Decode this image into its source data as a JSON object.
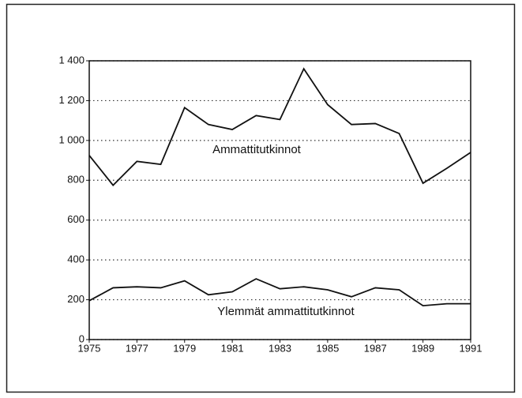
{
  "chart_data": {
    "type": "line",
    "x": [
      1975,
      1976,
      1977,
      1978,
      1979,
      1980,
      1981,
      1982,
      1983,
      1984,
      1985,
      1986,
      1987,
      1988,
      1989,
      1990,
      1991
    ],
    "series": [
      {
        "name": "Ammattitutkinnot",
        "color": "#111111",
        "values": [
          925,
          775,
          895,
          880,
          1165,
          1080,
          1055,
          1125,
          1105,
          1360,
          1180,
          1080,
          1085,
          1035,
          785,
          860,
          940
        ]
      },
      {
        "name": "Ylemmät ammattitutkinnot",
        "color": "#111111",
        "values": [
          195,
          260,
          265,
          260,
          295,
          225,
          240,
          305,
          255,
          265,
          250,
          215,
          260,
          250,
          170,
          180,
          180
        ]
      }
    ],
    "xlim": [
      1975,
      1991
    ],
    "xticks": [
      1975,
      1977,
      1979,
      1981,
      1983,
      1985,
      1987,
      1989,
      1991
    ],
    "ylim": [
      0,
      1400
    ],
    "yticks": [
      0,
      200,
      400,
      600,
      800,
      {
        "value": 1000,
        "label": "1 000"
      },
      {
        "value": 1200,
        "label": "1 200"
      },
      {
        "value": 1400,
        "label": "1 400"
      }
    ],
    "grid": true
  }
}
